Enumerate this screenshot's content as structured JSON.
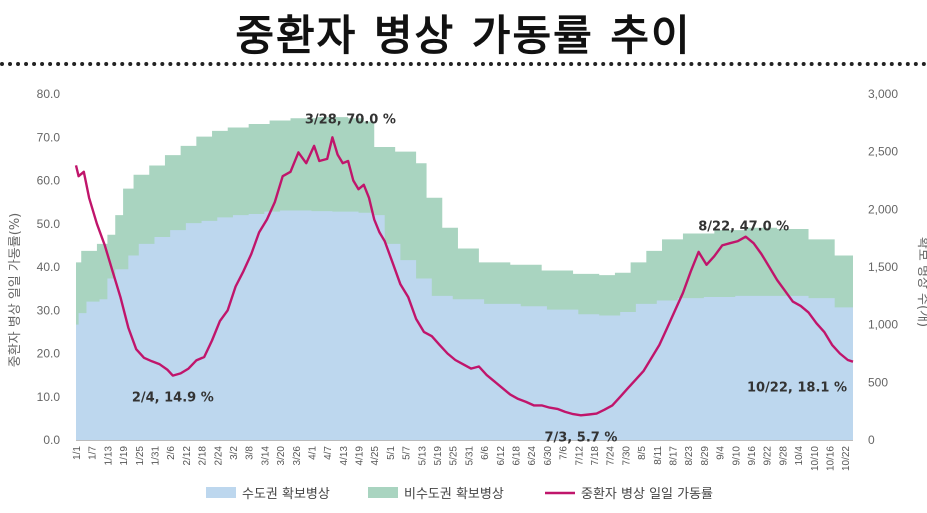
{
  "title": "중환자 병상 가동률 추이",
  "chart_data": {
    "type": "area",
    "ylabel_left": "중환자 병상 일일 가동률(%)",
    "ylabel_right": "확보 병상 수(개)",
    "ylim_left": [
      0,
      80
    ],
    "ylim_right": [
      0,
      3000
    ],
    "yticks_left": [
      "0.0",
      "10.0",
      "20.0",
      "30.0",
      "40.0",
      "50.0",
      "60.0",
      "70.0",
      "80.0"
    ],
    "yticks_right": [
      "0",
      "500",
      "1,000",
      "1,500",
      "2,000",
      "2,500",
      "3,000"
    ],
    "x_ticks": [
      "1/1",
      "1/7",
      "1/13",
      "1/19",
      "1/25",
      "1/31",
      "2/6",
      "2/12",
      "2/18",
      "2/24",
      "3/2",
      "3/8",
      "3/14",
      "3/20",
      "3/26",
      "4/1",
      "4/7",
      "4/13",
      "4/19",
      "4/25",
      "5/1",
      "5/7",
      "5/13",
      "5/19",
      "5/25",
      "5/31",
      "6/6",
      "6/12",
      "6/18",
      "6/24",
      "6/30",
      "7/6",
      "7/12",
      "7/18",
      "7/24",
      "7/30",
      "8/5",
      "8/11",
      "8/17",
      "8/23",
      "8/29",
      "9/4",
      "9/10",
      "9/16",
      "9/22",
      "9/28",
      "10/4",
      "10/10",
      "10/16",
      "10/22"
    ],
    "x_day_range": [
      0,
      297
    ],
    "series": [
      {
        "name": "수도권 확보병상",
        "color": "#bdd7ee",
        "axis": "right",
        "points": [
          [
            0,
            1000
          ],
          [
            1,
            1100
          ],
          [
            4,
            1200
          ],
          [
            9,
            1220
          ],
          [
            12,
            1400
          ],
          [
            15,
            1480
          ],
          [
            20,
            1600
          ],
          [
            24,
            1700
          ],
          [
            30,
            1760
          ],
          [
            36,
            1820
          ],
          [
            42,
            1880
          ],
          [
            48,
            1900
          ],
          [
            54,
            1930
          ],
          [
            60,
            1950
          ],
          [
            66,
            1960
          ],
          [
            72,
            1980
          ],
          [
            78,
            1990
          ],
          [
            84,
            1990
          ],
          [
            90,
            1985
          ],
          [
            98,
            1980
          ],
          [
            108,
            1970
          ],
          [
            114,
            1950
          ],
          [
            118,
            1700
          ],
          [
            124,
            1560
          ],
          [
            130,
            1400
          ],
          [
            136,
            1250
          ],
          [
            144,
            1220
          ],
          [
            156,
            1180
          ],
          [
            170,
            1160
          ],
          [
            180,
            1130
          ],
          [
            192,
            1090
          ],
          [
            200,
            1080
          ],
          [
            208,
            1110
          ],
          [
            214,
            1180
          ],
          [
            222,
            1210
          ],
          [
            230,
            1230
          ],
          [
            240,
            1240
          ],
          [
            252,
            1250
          ],
          [
            264,
            1250
          ],
          [
            280,
            1230
          ],
          [
            290,
            1150
          ],
          [
            297,
            1140
          ]
        ]
      },
      {
        "name": "비수도권 확보병상",
        "color": "#a9d4c0",
        "axis": "right",
        "points": [
          [
            0,
            1540
          ],
          [
            2,
            1640
          ],
          [
            8,
            1700
          ],
          [
            12,
            1780
          ],
          [
            15,
            1950
          ],
          [
            18,
            2180
          ],
          [
            22,
            2300
          ],
          [
            28,
            2380
          ],
          [
            34,
            2470
          ],
          [
            40,
            2550
          ],
          [
            46,
            2630
          ],
          [
            52,
            2680
          ],
          [
            58,
            2710
          ],
          [
            66,
            2740
          ],
          [
            74,
            2770
          ],
          [
            82,
            2790
          ],
          [
            92,
            2800
          ],
          [
            104,
            2790
          ],
          [
            110,
            2760
          ],
          [
            114,
            2540
          ],
          [
            122,
            2500
          ],
          [
            130,
            2400
          ],
          [
            134,
            2100
          ],
          [
            140,
            1840
          ],
          [
            146,
            1660
          ],
          [
            154,
            1540
          ],
          [
            166,
            1520
          ],
          [
            178,
            1470
          ],
          [
            190,
            1440
          ],
          [
            200,
            1430
          ],
          [
            206,
            1450
          ],
          [
            212,
            1540
          ],
          [
            218,
            1640
          ],
          [
            224,
            1740
          ],
          [
            232,
            1790
          ],
          [
            244,
            1820
          ],
          [
            256,
            1840
          ],
          [
            268,
            1830
          ],
          [
            280,
            1740
          ],
          [
            290,
            1600
          ],
          [
            297,
            1580
          ]
        ]
      },
      {
        "name": "중환자 병상 일일 가동률",
        "color": "#c0156b",
        "axis": "left",
        "points": [
          [
            0,
            63.5
          ],
          [
            1,
            61.0
          ],
          [
            3,
            62.0
          ],
          [
            5,
            56.0
          ],
          [
            8,
            50.0
          ],
          [
            11,
            45.0
          ],
          [
            14,
            39.0
          ],
          [
            17,
            33.0
          ],
          [
            20,
            26.0
          ],
          [
            23,
            21.0
          ],
          [
            26,
            19.0
          ],
          [
            29,
            18.2
          ],
          [
            32,
            17.5
          ],
          [
            35,
            16.2
          ],
          [
            37,
            14.9
          ],
          [
            40,
            15.4
          ],
          [
            43,
            16.5
          ],
          [
            46,
            18.4
          ],
          [
            49,
            19.2
          ],
          [
            52,
            23.0
          ],
          [
            55,
            27.5
          ],
          [
            58,
            30.0
          ],
          [
            61,
            35.5
          ],
          [
            64,
            39.0
          ],
          [
            67,
            43.0
          ],
          [
            70,
            48.0
          ],
          [
            73,
            51.0
          ],
          [
            76,
            55.0
          ],
          [
            79,
            61.0
          ],
          [
            82,
            62.0
          ],
          [
            85,
            66.5
          ],
          [
            88,
            64.0
          ],
          [
            91,
            68.0
          ],
          [
            93,
            64.5
          ],
          [
            96,
            65.0
          ],
          [
            98,
            70.0
          ],
          [
            100,
            66.0
          ],
          [
            102,
            64.0
          ],
          [
            104,
            64.5
          ],
          [
            106,
            60.0
          ],
          [
            108,
            58.0
          ],
          [
            110,
            59.0
          ],
          [
            112,
            56.0
          ],
          [
            114,
            51.0
          ],
          [
            116,
            48.0
          ],
          [
            118,
            46.0
          ],
          [
            121,
            41.0
          ],
          [
            124,
            36.0
          ],
          [
            127,
            33.0
          ],
          [
            130,
            28.0
          ],
          [
            133,
            25.0
          ],
          [
            136,
            24.0
          ],
          [
            139,
            22.0
          ],
          [
            142,
            20.0
          ],
          [
            145,
            18.5
          ],
          [
            148,
            17.5
          ],
          [
            151,
            16.5
          ],
          [
            154,
            17.0
          ],
          [
            157,
            15.0
          ],
          [
            160,
            13.5
          ],
          [
            163,
            12.0
          ],
          [
            166,
            10.5
          ],
          [
            169,
            9.5
          ],
          [
            172,
            8.8
          ],
          [
            175,
            8.0
          ],
          [
            178,
            8.0
          ],
          [
            181,
            7.5
          ],
          [
            184,
            7.2
          ],
          [
            187,
            6.5
          ],
          [
            190,
            6.0
          ],
          [
            193,
            5.7
          ],
          [
            196,
            5.9
          ],
          [
            199,
            6.1
          ],
          [
            202,
            7.0
          ],
          [
            205,
            8.0
          ],
          [
            208,
            10.0
          ],
          [
            211,
            12.0
          ],
          [
            214,
            14.0
          ],
          [
            217,
            16.0
          ],
          [
            220,
            19.0
          ],
          [
            223,
            22.0
          ],
          [
            226,
            26.0
          ],
          [
            229,
            30.0
          ],
          [
            232,
            34.0
          ],
          [
            235,
            39.0
          ],
          [
            238,
            43.5
          ],
          [
            241,
            40.5
          ],
          [
            244,
            42.5
          ],
          [
            247,
            45.0
          ],
          [
            250,
            45.5
          ],
          [
            253,
            46.0
          ],
          [
            256,
            47.0
          ],
          [
            259,
            45.5
          ],
          [
            262,
            43.0
          ],
          [
            265,
            40.0
          ],
          [
            268,
            37.0
          ],
          [
            271,
            34.5
          ],
          [
            274,
            32.0
          ],
          [
            277,
            31.0
          ],
          [
            280,
            29.5
          ],
          [
            283,
            27.0
          ],
          [
            286,
            25.0
          ],
          [
            289,
            22.0
          ],
          [
            292,
            20.0
          ],
          [
            295,
            18.5
          ],
          [
            297,
            18.1
          ]
        ]
      }
    ],
    "annotations": [
      {
        "text": "2/4, 14.9 %",
        "x_day": 37,
        "y": 14.9
      },
      {
        "text": "3/28, 70.0 %",
        "x_day": 98,
        "y": 70.0
      },
      {
        "text": "7/3, 5.7 %",
        "x_day": 193,
        "y": 5.7
      },
      {
        "text": "8/22, 47.0 %",
        "x_day": 256,
        "y": 47.0
      },
      {
        "text": "10/22, 18.1 %",
        "x_day": 297,
        "y": 18.1
      }
    ],
    "legend": [
      "수도권 확보병상",
      "비수도권 확보병상",
      "중환자 병상 일일 가동률"
    ],
    "legend_position": "bottom"
  }
}
